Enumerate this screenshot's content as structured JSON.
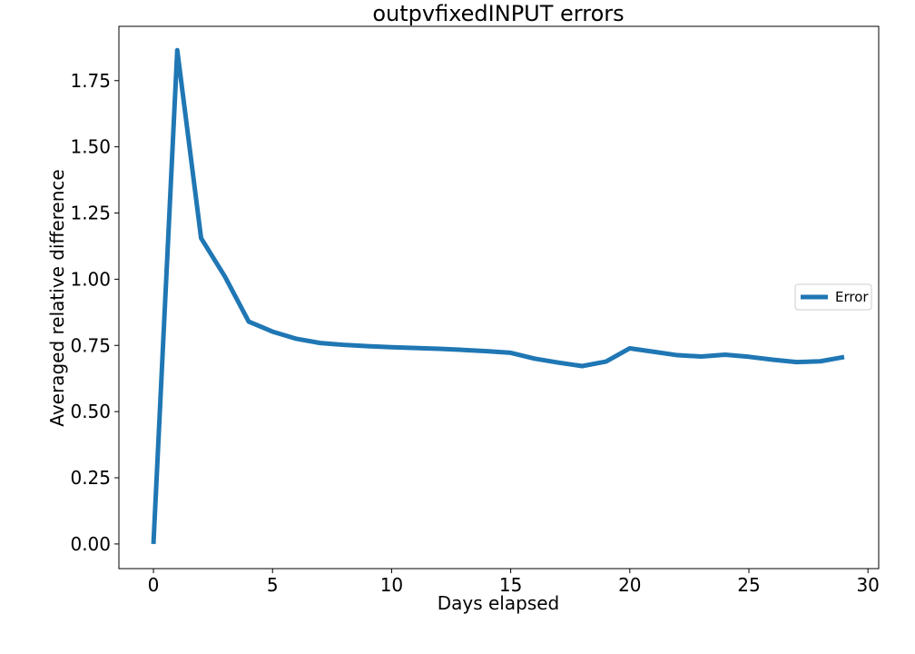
{
  "chart_data": {
    "type": "line",
    "title": "outpvfixedINPUT errors",
    "xlabel": "Days elapsed",
    "ylabel": "Averaged relative difference",
    "xlim": [
      -1.45,
      30.45
    ],
    "ylim": [
      -0.093,
      1.955
    ],
    "xticks": [
      0,
      5,
      10,
      15,
      20,
      25,
      30
    ],
    "xtick_labels": [
      "0",
      "5",
      "10",
      "15",
      "20",
      "25",
      "30"
    ],
    "yticks": [
      0.0,
      0.25,
      0.5,
      0.75,
      1.0,
      1.25,
      1.5,
      1.75
    ],
    "ytick_labels": [
      "0.00",
      "0.25",
      "0.50",
      "0.75",
      "1.00",
      "1.25",
      "1.50",
      "1.75"
    ],
    "grid": false,
    "legend_position": "center-right",
    "series": [
      {
        "name": "Error",
        "color": "#1f77b4",
        "x": [
          0,
          1,
          2,
          3,
          4,
          5,
          6,
          7,
          8,
          9,
          10,
          11,
          12,
          13,
          14,
          15,
          16,
          17,
          18,
          19,
          20,
          21,
          22,
          23,
          24,
          25,
          26,
          27,
          28,
          29
        ],
        "y": [
          0.0,
          1.865,
          1.155,
          1.01,
          0.84,
          0.802,
          0.775,
          0.759,
          0.752,
          0.747,
          0.743,
          0.74,
          0.737,
          0.733,
          0.728,
          0.722,
          0.7,
          0.685,
          0.672,
          0.689,
          0.739,
          0.726,
          0.713,
          0.708,
          0.715,
          0.707,
          0.696,
          0.687,
          0.69,
          0.706
        ]
      }
    ]
  }
}
